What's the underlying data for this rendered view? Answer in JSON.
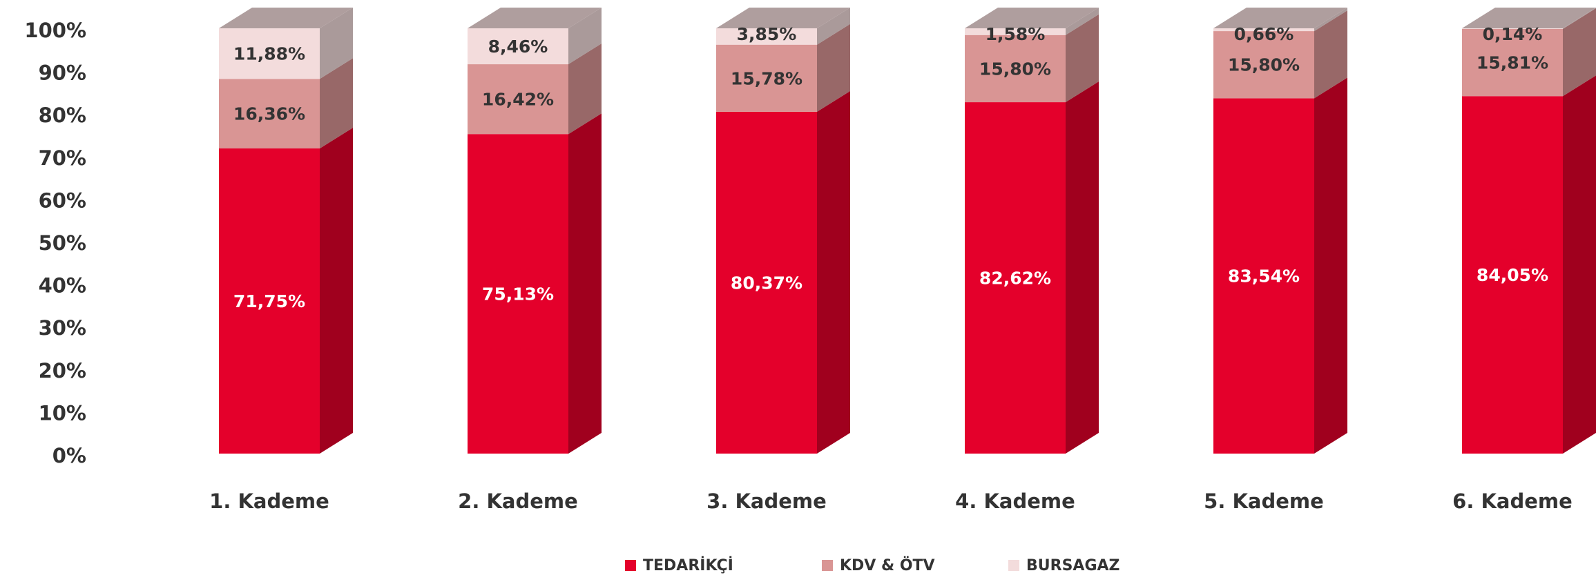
{
  "chart_data": {
    "type": "bar3d_stacked",
    "categories": [
      "1. Kademe",
      "2. Kademe",
      "3. Kademe",
      "4. Kademe",
      "5. Kademe",
      "6. Kademe"
    ],
    "series": [
      {
        "name": "TEDARİKÇİ",
        "color": "#e4002b",
        "values": [
          71.75,
          75.13,
          80.37,
          82.62,
          83.54,
          84.05
        ],
        "value_labels": [
          "71,75%",
          "75,13%",
          "80,37%",
          "82,62%",
          "83,54%",
          "84,05%"
        ]
      },
      {
        "name": "KDV & ÖTV",
        "color": "#d99594",
        "values": [
          16.36,
          16.42,
          15.78,
          15.8,
          15.8,
          15.81
        ],
        "value_labels": [
          "16,36%",
          "16,42%",
          "15,78%",
          "15,80%",
          "15,80%",
          "15,81%"
        ]
      },
      {
        "name": "BURSAGAZ",
        "color": "#f3dcdc",
        "values": [
          11.88,
          8.46,
          3.85,
          1.58,
          0.66,
          0.14
        ],
        "value_labels": [
          "11,88%",
          "8,46%",
          "3,85%",
          "1,58%",
          "0,66%",
          "0,14%"
        ]
      }
    ],
    "ylim": [
      0,
      100
    ],
    "yticks": [
      {
        "value": 0,
        "label": "0%"
      },
      {
        "value": 10,
        "label": "10%"
      },
      {
        "value": 20,
        "label": "20%"
      },
      {
        "value": 30,
        "label": "30%"
      },
      {
        "value": 40,
        "label": "40%"
      },
      {
        "value": 50,
        "label": "50%"
      },
      {
        "value": 60,
        "label": "60%"
      },
      {
        "value": 70,
        "label": "70%"
      },
      {
        "value": 80,
        "label": "80%"
      },
      {
        "value": 90,
        "label": "90%"
      },
      {
        "value": 100,
        "label": "100%"
      }
    ],
    "grid": false
  }
}
